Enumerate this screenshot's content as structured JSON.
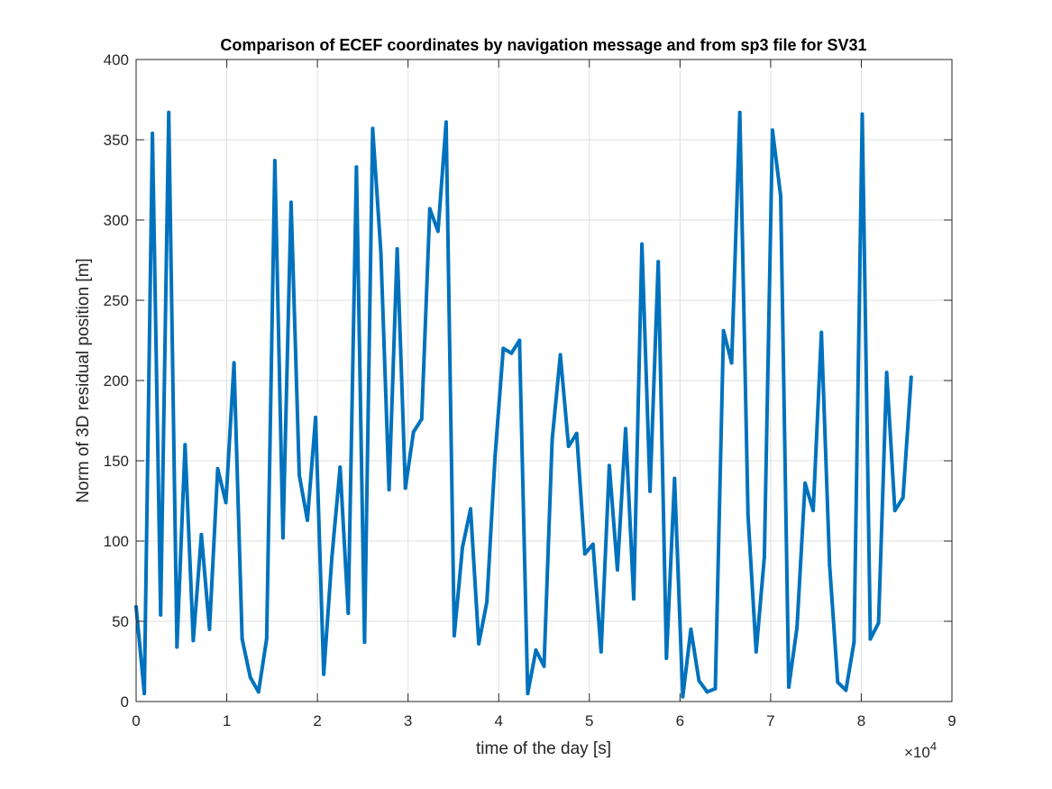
{
  "chart_data": {
    "type": "line",
    "title": "Comparison of ECEF coordinates by navigation message and from sp3 file for SV31",
    "xlabel": "time of the day [s]",
    "ylabel": "Norm of 3D residual position [m]",
    "x_exponent_label": "×10",
    "x_exponent_power": "4",
    "xlim": [
      0,
      90000
    ],
    "ylim": [
      0,
      400
    ],
    "xticks": [
      0,
      10000,
      20000,
      30000,
      40000,
      50000,
      60000,
      70000,
      80000,
      90000
    ],
    "xtick_labels": [
      "0",
      "1",
      "2",
      "3",
      "4",
      "5",
      "6",
      "7",
      "8",
      "9"
    ],
    "yticks": [
      0,
      50,
      100,
      150,
      200,
      250,
      300,
      350,
      400
    ],
    "ytick_labels": [
      "0",
      "50",
      "100",
      "150",
      "200",
      "250",
      "300",
      "350",
      "400"
    ],
    "grid": true,
    "series": [
      {
        "color": "#0072bd",
        "x": [
          0,
          900,
          1800,
          2700,
          3600,
          4500,
          5400,
          6300,
          7200,
          8100,
          9000,
          9900,
          10800,
          11700,
          12600,
          13500,
          14400,
          15300,
          16200,
          17100,
          18000,
          18900,
          19800,
          20700,
          21600,
          22500,
          23400,
          24300,
          25200,
          26100,
          27000,
          27900,
          28800,
          29700,
          30600,
          31500,
          32400,
          33300,
          34200,
          35100,
          36000,
          36900,
          37800,
          38700,
          39600,
          40500,
          41400,
          42300,
          43200,
          44100,
          45000,
          45900,
          46800,
          47700,
          48600,
          49500,
          50400,
          51300,
          52200,
          53100,
          54000,
          54900,
          55800,
          56700,
          57600,
          58500,
          59400,
          60300,
          61200,
          62100,
          63000,
          63900,
          64800,
          65700,
          66600,
          67500,
          68400,
          69300,
          70200,
          71100,
          72000,
          72900,
          73800,
          74700,
          75600,
          76500,
          77400,
          78300,
          79200,
          80100,
          81000,
          81900,
          82800,
          83700,
          84600,
          85500
        ],
        "values": [
          59,
          5,
          354,
          54,
          367,
          34,
          160,
          38,
          104,
          45,
          145,
          124,
          211,
          39,
          15,
          6,
          39,
          337,
          102,
          311,
          141,
          113,
          177,
          17,
          90,
          146,
          55,
          333,
          37,
          357,
          280,
          132,
          282,
          133,
          168,
          176,
          307,
          293,
          361,
          41,
          96,
          120,
          36,
          62,
          153,
          220,
          217,
          225,
          5,
          32,
          22,
          163,
          216,
          159,
          167,
          92,
          98,
          31,
          147,
          82,
          170,
          64,
          285,
          131,
          274,
          27,
          139,
          3,
          45,
          13,
          6,
          8,
          231,
          211,
          367,
          116,
          31,
          90,
          356,
          315,
          9,
          46,
          136,
          119,
          230,
          85,
          12,
          7,
          37,
          366,
          39,
          49,
          205,
          119,
          127,
          202
        ]
      }
    ]
  }
}
